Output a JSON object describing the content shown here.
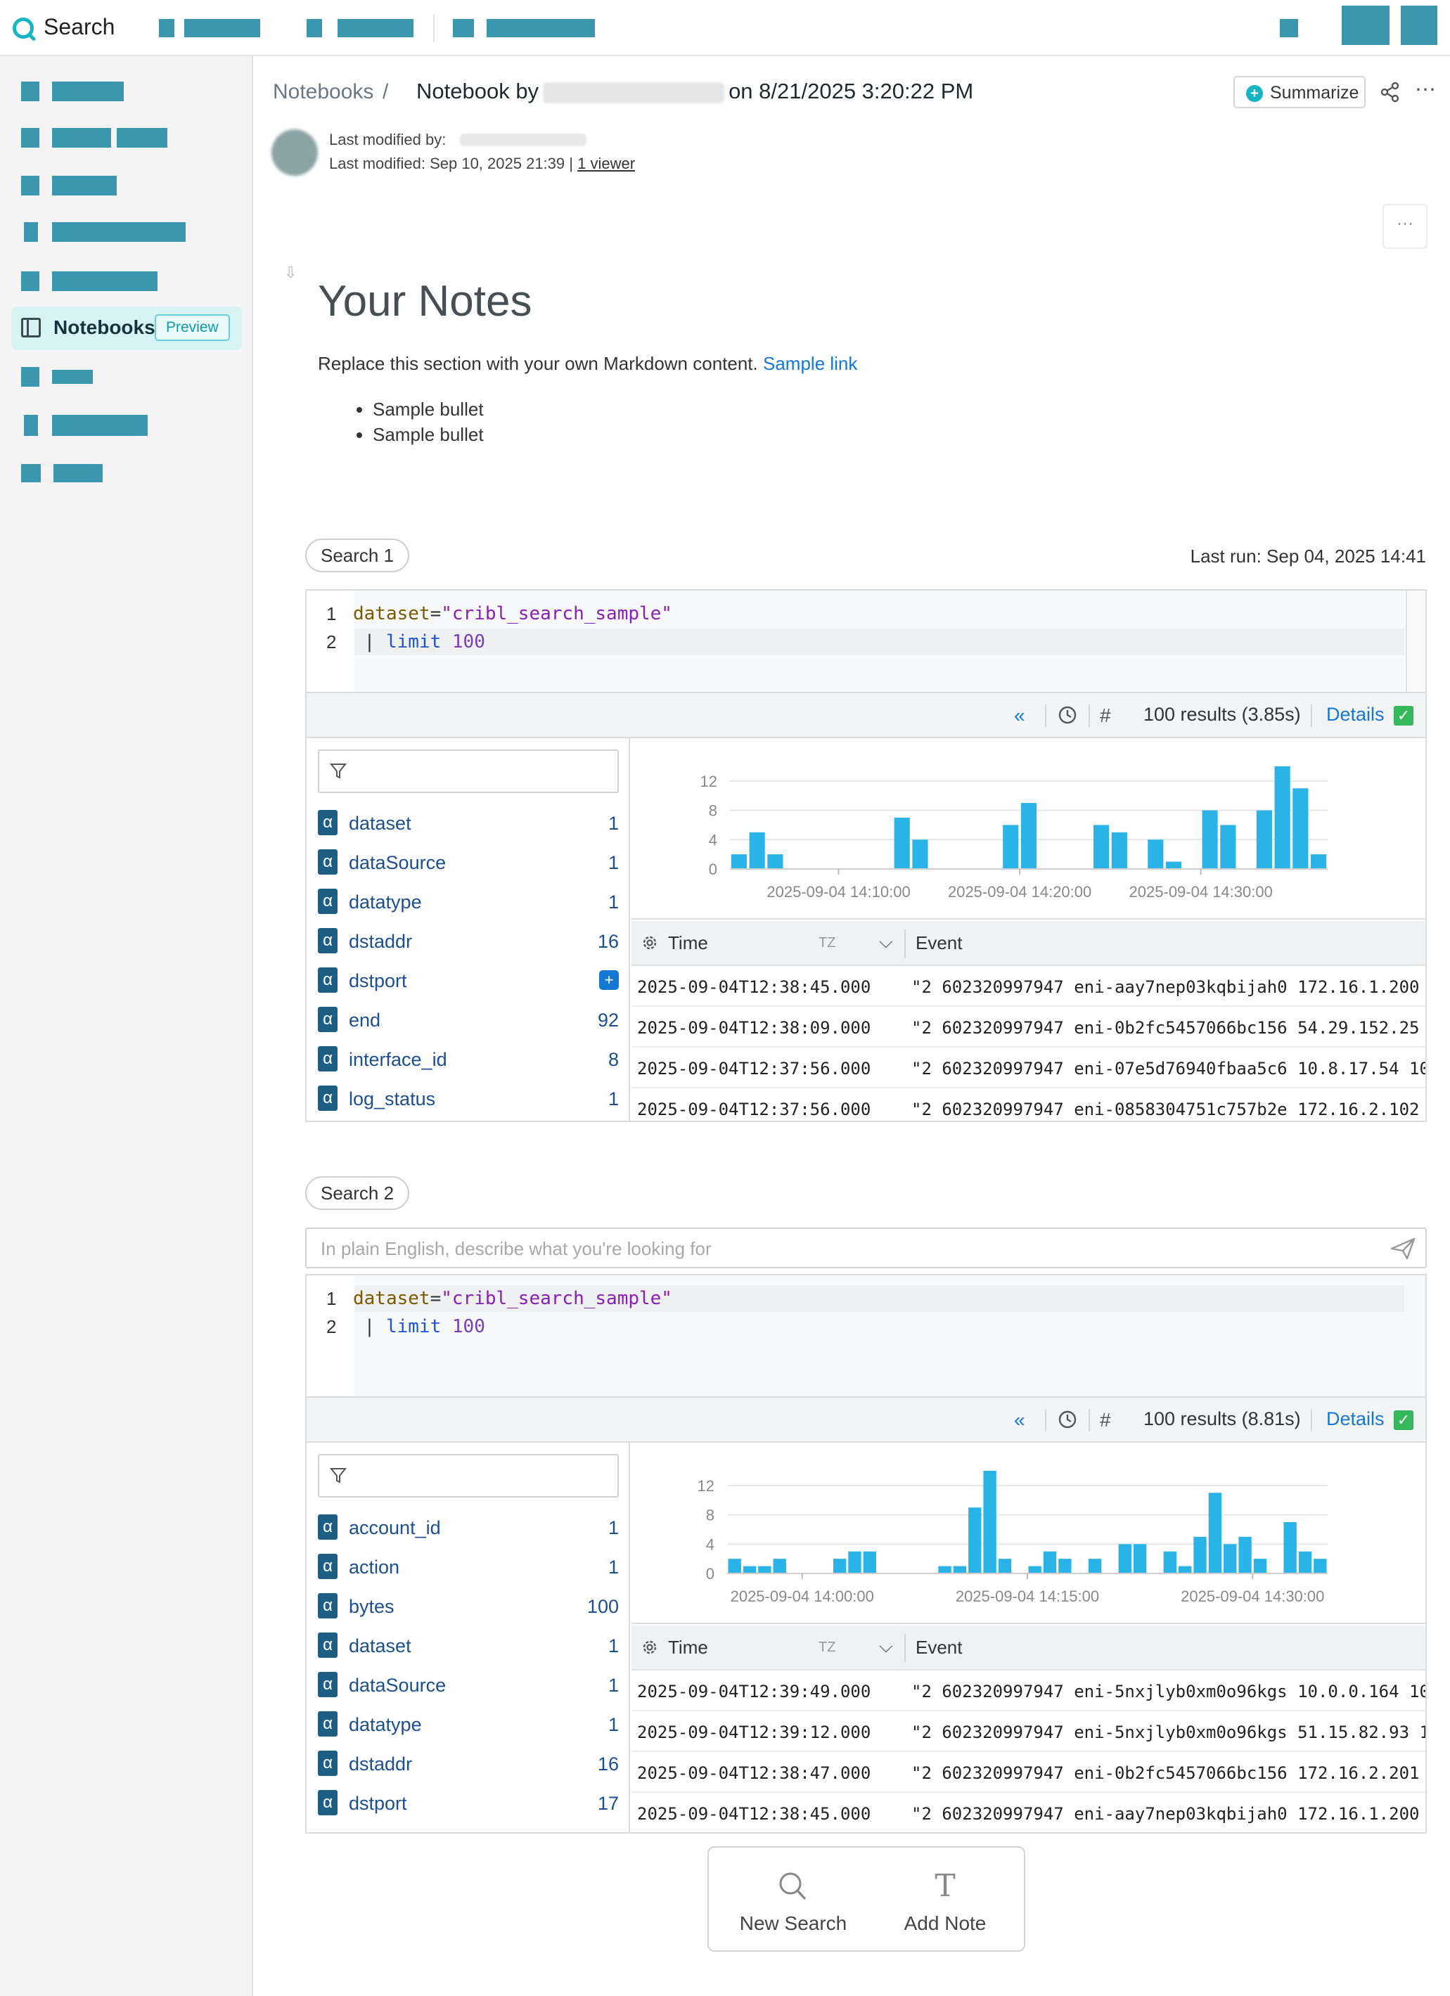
{
  "app": {
    "title": "Search"
  },
  "sidebar": {
    "active_label": "Notebooks",
    "active_badge": "Preview"
  },
  "breadcrumb": {
    "root": "Notebooks",
    "separator": "/"
  },
  "notebook": {
    "title_prefix": "Notebook by",
    "title_suffix": "on 8/21/2025 3:20:22 PM"
  },
  "actions": {
    "summarize": "Summarize"
  },
  "meta": {
    "modified_by_label": "Last modified by:",
    "last_modified": "Last modified: Sep 10, 2025 21:39",
    "separator": "|",
    "viewers": "1 viewer"
  },
  "notes": {
    "heading": "Your Notes",
    "text": "Replace this section with your own Markdown content.",
    "link": "Sample link",
    "bullets": [
      "Sample bullet",
      "Sample bullet"
    ]
  },
  "search1": {
    "label": "Search 1",
    "last_run": "Last run: Sep 04, 2025 14:41",
    "code": {
      "field": "dataset",
      "eq": "=",
      "value": "\"cribl_search_sample\"",
      "pipe": "| ",
      "kw": "limit",
      "num": "100"
    },
    "results": "100 results (3.85s)",
    "details": "Details",
    "fields": [
      {
        "name": "dataset",
        "count": "1"
      },
      {
        "name": "dataSource",
        "count": "1"
      },
      {
        "name": "datatype",
        "count": "1"
      },
      {
        "name": "dstaddr",
        "count": "16"
      },
      {
        "name": "dstport",
        "count": ""
      },
      {
        "name": "end",
        "count": "92"
      },
      {
        "name": "interface_id",
        "count": "8"
      },
      {
        "name": "log_status",
        "count": "1"
      }
    ],
    "table": {
      "time_header": "Time",
      "tz": "TZ",
      "event_header": "Event"
    },
    "events": [
      {
        "time": "2025-09-04T12:38:45.000",
        "event": "\"2 602320997947 eni-aay7nep03kqbijah0 172.16.1.200"
      },
      {
        "time": "2025-09-04T12:38:09.000",
        "event": "\"2 602320997947 eni-0b2fc5457066bc156 54.29.152.25"
      },
      {
        "time": "2025-09-04T12:37:56.000",
        "event": "\"2 602320997947 eni-07e5d76940fbaa5c6 10.8.17.54 10"
      },
      {
        "time": "2025-09-04T12:37:56.000",
        "event": "\"2 602320997947 eni-0858304751c757b2e 172.16.2.102"
      }
    ]
  },
  "search2": {
    "label": "Search 2",
    "ai_placeholder": "In plain English, describe what you're looking for",
    "code": {
      "field": "dataset",
      "eq": "=",
      "value": "\"cribl_search_sample\"",
      "pipe": "| ",
      "kw": "limit",
      "num": "100"
    },
    "results": "100 results (8.81s)",
    "details": "Details",
    "fields": [
      {
        "name": "account_id",
        "count": "1"
      },
      {
        "name": "action",
        "count": "1"
      },
      {
        "name": "bytes",
        "count": "100"
      },
      {
        "name": "dataset",
        "count": "1"
      },
      {
        "name": "dataSource",
        "count": "1"
      },
      {
        "name": "datatype",
        "count": "1"
      },
      {
        "name": "dstaddr",
        "count": "16"
      },
      {
        "name": "dstport",
        "count": "17"
      }
    ],
    "table": {
      "time_header": "Time",
      "tz": "TZ",
      "event_header": "Event"
    },
    "events": [
      {
        "time": "2025-09-04T12:39:49.000",
        "event": "\"2 602320997947 eni-5nxjlyb0xm0o96kgs 10.0.0.164 10"
      },
      {
        "time": "2025-09-04T12:39:12.000",
        "event": "\"2 602320997947 eni-5nxjlyb0xm0o96kgs 51.15.82.93 1"
      },
      {
        "time": "2025-09-04T12:38:47.000",
        "event": "\"2 602320997947 eni-0b2fc5457066bc156 172.16.2.201"
      },
      {
        "time": "2025-09-04T12:38:45.000",
        "event": "\"2 602320997947 eni-aay7nep03kqbijah0 172.16.1.200"
      }
    ]
  },
  "add_panel": {
    "new_search": "New Search",
    "add_note": "Add Note"
  },
  "colors": {
    "accent": "#16b5c3",
    "bar": "#29b3e6",
    "link": "#1478d4",
    "field": "#1d5f83"
  },
  "chart_data": [
    {
      "type": "bar",
      "title": "",
      "xlabel": "",
      "ylabel": "",
      "ylim": [
        0,
        14
      ],
      "yticks": [
        0,
        4,
        8,
        12
      ],
      "xtick_labels": [
        "2025-09-04 14:10:00",
        "2025-09-04 14:20:00",
        "2025-09-04 14:30:00"
      ],
      "xtick_positions": [
        6,
        16,
        26
      ],
      "values": [
        2,
        5,
        2,
        0,
        0,
        0,
        0,
        0,
        0,
        7,
        4,
        0,
        0,
        0,
        0,
        6,
        9,
        0,
        0,
        0,
        6,
        5,
        0,
        4,
        1,
        0,
        8,
        6,
        0,
        8,
        14,
        11,
        2
      ]
    },
    {
      "type": "bar",
      "title": "",
      "xlabel": "",
      "ylabel": "",
      "ylim": [
        0,
        14
      ],
      "yticks": [
        0,
        4,
        8,
        12
      ],
      "xtick_labels": [
        "2025-09-04 14:00:00",
        "2025-09-04 14:15:00",
        "2025-09-04 14:30:00"
      ],
      "xtick_positions": [
        5,
        20,
        35
      ],
      "values": [
        2,
        1,
        1,
        2,
        0,
        0,
        0,
        2,
        3,
        3,
        0,
        0,
        0,
        0,
        1,
        1,
        9,
        14,
        2,
        0,
        1,
        3,
        2,
        0,
        2,
        0,
        4,
        4,
        0,
        3,
        1,
        5,
        11,
        4,
        5,
        2,
        0,
        7,
        3,
        2
      ]
    }
  ]
}
